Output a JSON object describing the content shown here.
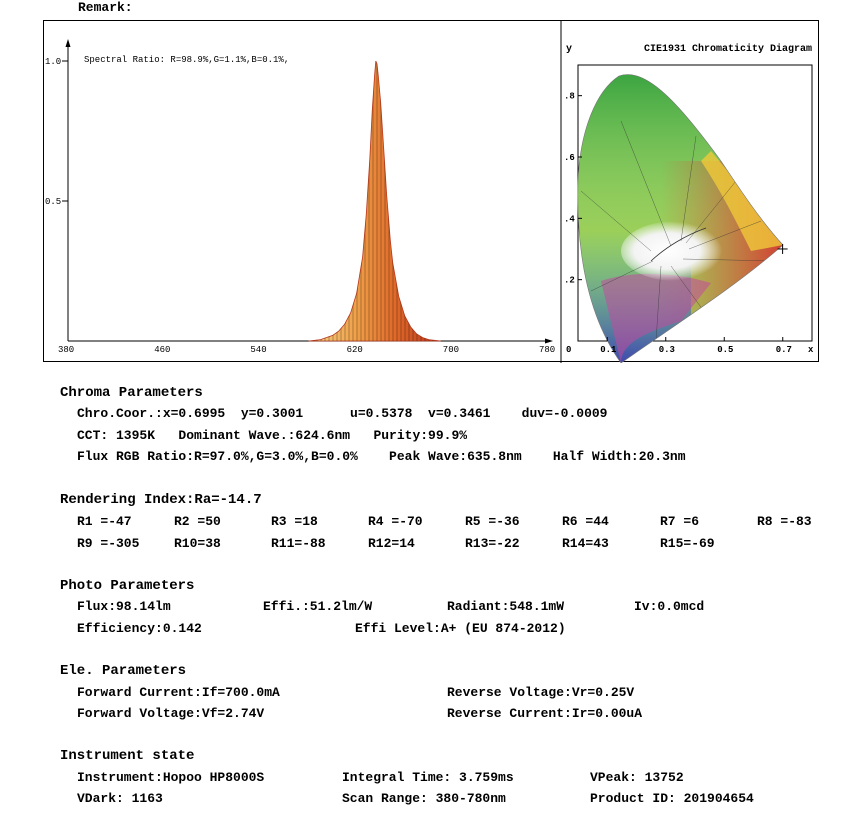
{
  "remark_label": "Remark:",
  "chart_data": [
    {
      "type": "area",
      "annotation": "Spectral Ratio:  R=98.9%,G=1.1%,B=0.1%,",
      "xlim": [
        380,
        780
      ],
      "ylim": [
        0,
        1.0
      ],
      "x_ticks": [
        "380",
        "460",
        "540",
        "620",
        "700",
        "780"
      ],
      "y_ticks": [
        "1.0",
        "0.5"
      ],
      "x": [
        580,
        590,
        600,
        605,
        610,
        615,
        620,
        625,
        628,
        631,
        633,
        635,
        636,
        637,
        638,
        640,
        642,
        645,
        648,
        650,
        655,
        660,
        665,
        670,
        675,
        680,
        690
      ],
      "values": [
        0,
        0.005,
        0.02,
        0.035,
        0.06,
        0.1,
        0.17,
        0.3,
        0.45,
        0.65,
        0.82,
        0.95,
        1.0,
        0.99,
        0.95,
        0.85,
        0.72,
        0.52,
        0.36,
        0.28,
        0.16,
        0.09,
        0.05,
        0.025,
        0.012,
        0.005,
        0
      ]
    },
    {
      "type": "scatter",
      "title": "CIE1931 Chromaticity Diagram",
      "ylabel": "y",
      "xlabel": "x",
      "xlim": [
        0,
        0.8
      ],
      "ylim": [
        0,
        0.9
      ],
      "x_ticks": [
        "0",
        "0.1",
        "0.3",
        "0.5",
        "0.7"
      ],
      "y_ticks": [
        ".8",
        ".6",
        ".4",
        ".2"
      ],
      "point": {
        "x": 0.6995,
        "y": 0.3001
      }
    }
  ],
  "chroma": {
    "title": "Chroma Parameters",
    "line1": "Chro.Coor.:x=0.6995  y=0.3001      u=0.5378  v=0.3461    duv=-0.0009",
    "line2": "CCT: 1395K   Dominant Wave.:624.6nm   Purity:99.9%",
    "line3": "Flux RGB Ratio:R=97.0%,G=3.0%,B=0.0%    Peak Wave:635.8nm    Half Width:20.3nm"
  },
  "rendering": {
    "title": "Rendering Index:Ra=-14.7",
    "row1": [
      "R1 =-47",
      "R2 =50",
      "R3 =18",
      "R4 =-70",
      "R5 =-36",
      "R6 =44",
      "R7 =6",
      "R8 =-83"
    ],
    "row2": [
      "R9 =-305",
      "R10=38",
      "R11=-88",
      "R12=14",
      "R13=-22",
      "R14=43",
      "R15=-69"
    ]
  },
  "photo": {
    "title": "Photo Parameters",
    "flux": "Flux:98.14lm",
    "effi": "Effi.:51.2lm/W",
    "radiant": "Radiant:548.1mW",
    "iv": "Iv:0.0mcd",
    "efficiency": "Efficiency:0.142",
    "effi_level": "Effi Level:A+ (EU 874-2012)"
  },
  "ele": {
    "title": "Ele. Parameters",
    "if": "Forward Current:If=700.0mA",
    "vr": "Reverse Voltage:Vr=0.25V",
    "vf": "Forward Voltage:Vf=2.74V",
    "ir": "Reverse Current:Ir=0.00uA"
  },
  "instrument": {
    "title": "Instrument state",
    "instrument": "Instrument:Hopoo HP8000S",
    "integral": "Integral Time: 3.759ms",
    "vpeak": "VPeak: 13752",
    "vdark": "VDark: 1163",
    "scan": "Scan Range: 380-780nm",
    "product": "Product ID: 201904654"
  }
}
